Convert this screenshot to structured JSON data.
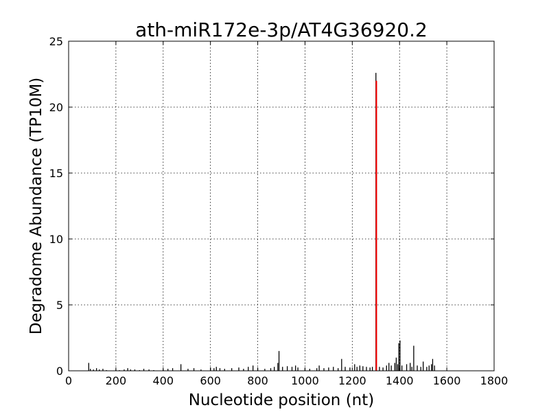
{
  "chart_data": {
    "type": "bar",
    "title": "ath-miR172e-3p/AT4G36920.2",
    "xlabel": "Nucleotide position (nt)",
    "ylabel": "Degradome Abundance (TP10M)",
    "xlim": [
      0,
      1800
    ],
    "ylim": [
      0,
      25
    ],
    "xticks": [
      0,
      200,
      400,
      600,
      800,
      1000,
      1200,
      1400,
      1600,
      1800
    ],
    "yticks": [
      0,
      5,
      10,
      15,
      20,
      25
    ],
    "xtick_labels": [
      "0",
      "200",
      "400",
      "600",
      "800",
      "1000",
      "1200",
      "1400",
      "1600",
      "1800"
    ],
    "ytick_labels": [
      "0",
      "5",
      "10",
      "15",
      "20",
      "25"
    ],
    "grid": true,
    "series": [
      {
        "color": "#000000",
        "x": [
          85,
          92,
          105,
          118,
          130,
          145,
          160,
          200,
          215,
          235,
          250,
          262,
          280,
          300,
          318,
          340,
          360,
          400,
          420,
          440,
          475,
          505,
          530,
          560,
          600,
          615,
          625,
          640,
          660,
          690,
          720,
          740,
          760,
          780,
          800,
          830,
          855,
          870,
          885,
          890,
          905,
          925,
          945,
          960,
          970,
          1000,
          1020,
          1050,
          1060,
          1080,
          1100,
          1120,
          1140,
          1155,
          1170,
          1190,
          1210,
          1220,
          1232,
          1245,
          1260,
          1275,
          1285,
          1300,
          1315,
          1330,
          1345,
          1355,
          1365,
          1380,
          1386,
          1392,
          1397,
          1402,
          1410,
          1430,
          1445,
          1452,
          1460,
          1475,
          1490,
          1500,
          1515,
          1525,
          1535,
          1540,
          1548
        ],
        "y": [
          0.6,
          0.15,
          0.1,
          0.2,
          0.1,
          0.15,
          0.05,
          0.1,
          0.05,
          0.1,
          0.2,
          0.1,
          0.1,
          0.05,
          0.15,
          0.1,
          0.05,
          0.1,
          0.15,
          0.2,
          0.5,
          0.15,
          0.2,
          0.1,
          0.25,
          0.2,
          0.3,
          0.2,
          0.15,
          0.2,
          0.25,
          0.15,
          0.3,
          0.4,
          0.2,
          0.15,
          0.2,
          0.3,
          0.6,
          1.5,
          0.3,
          0.35,
          0.3,
          0.4,
          0.25,
          0.2,
          0.15,
          0.2,
          0.4,
          0.2,
          0.25,
          0.3,
          0.2,
          0.9,
          0.3,
          0.25,
          0.5,
          0.3,
          0.4,
          0.35,
          0.3,
          0.25,
          0.3,
          22.6,
          0.3,
          0.25,
          0.4,
          0.6,
          0.4,
          0.6,
          1.0,
          0.5,
          2.1,
          2.3,
          0.4,
          0.5,
          0.6,
          0.3,
          1.9,
          0.4,
          0.3,
          0.7,
          0.3,
          0.4,
          0.5,
          0.9,
          0.4
        ]
      },
      {
        "color": "#ff0000",
        "x": [
          1302
        ],
        "y": [
          22.0
        ]
      }
    ]
  }
}
